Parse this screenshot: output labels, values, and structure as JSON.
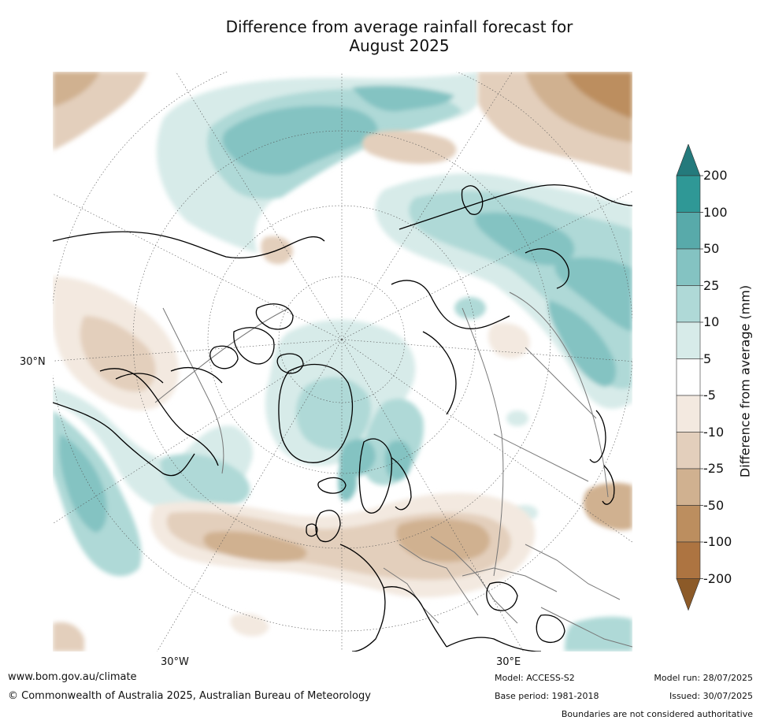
{
  "title": {
    "line1": "Difference from average rainfall forecast for",
    "line2": "August 2025"
  },
  "axis_labels": {
    "lat": "30°N",
    "lon_west": "30°W",
    "lon_east": "30°E"
  },
  "colorbar": {
    "title": "Difference from average (mm)",
    "ticks": [
      "200",
      "100",
      "50",
      "25",
      "10",
      "5",
      "-5",
      "-10",
      "-25",
      "-50",
      "-100",
      "-200"
    ],
    "colors": [
      "#247a7c",
      "#2f9896",
      "#58aaaa",
      "#84c3c2",
      "#afd9d7",
      "#d7ebe9",
      "#ffffff",
      "#f3e9e0",
      "#e3cfbc",
      "#d0b190",
      "#bc8e5f",
      "#ad7441",
      "#8c5a28"
    ],
    "bins": [
      ">200",
      "100 to 200",
      "50 to 100",
      "25 to 50",
      "10 to 25",
      "5 to 10",
      "-5 to 5",
      "-10 to -5",
      "-25 to -10",
      "-50 to -25",
      "-100 to -50",
      "-200 to -100",
      "<-200"
    ]
  },
  "footer": {
    "url": "www.bom.gov.au/climate",
    "copyright": "© Commonwealth of Australia 2025, Australian Bureau of Meteorology",
    "model": "Model: ACCESS-S2",
    "base_period": "Base period: 1981-2018",
    "model_run": "Model run: 28/07/2025",
    "issued": "Issued: 30/07/2025",
    "disclaimer": "Boundaries are not considered authoritative"
  }
}
